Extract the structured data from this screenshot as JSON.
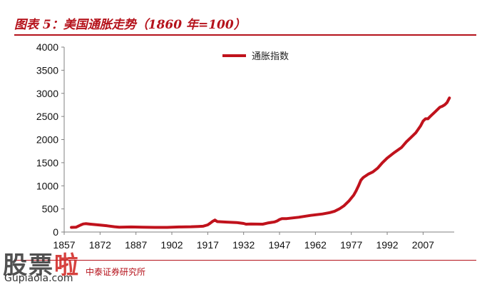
{
  "header": {
    "title": "图表 5：美国通胀走势（1860 年=100）"
  },
  "footer": {
    "source": "中泰证券研究所"
  },
  "watermark": {
    "text_left": "股票",
    "text_right": "啦",
    "url": "Gupiaola.com"
  },
  "colors": {
    "accent": "#b5121b",
    "series": "#c0121c",
    "axis": "#808080"
  },
  "chart_data": {
    "type": "line",
    "title": "",
    "xlabel": "",
    "ylabel": "",
    "xlim": [
      1857,
      2020
    ],
    "ylim": [
      0,
      4000
    ],
    "y_ticks": [
      "0",
      "500",
      "1000",
      "1500",
      "2000",
      "2500",
      "3000",
      "3500",
      "4000"
    ],
    "x_ticks": [
      "1857",
      "1872",
      "1887",
      "1902",
      "1917",
      "1932",
      "1947",
      "1962",
      "1977",
      "1992",
      "2007"
    ],
    "legend": "top-center",
    "grid": false,
    "series": [
      {
        "name": "通胀指数",
        "x": [
          1860,
          1862,
          1864,
          1865,
          1866,
          1868,
          1870,
          1872,
          1875,
          1878,
          1880,
          1885,
          1890,
          1895,
          1900,
          1905,
          1910,
          1913,
          1915,
          1917,
          1918,
          1919,
          1920,
          1921,
          1925,
          1929,
          1930,
          1932,
          1933,
          1935,
          1940,
          1942,
          1945,
          1946,
          1947,
          1948,
          1950,
          1955,
          1960,
          1965,
          1968,
          1970,
          1972,
          1974,
          1976,
          1978,
          1979,
          1980,
          1981,
          1982,
          1984,
          1986,
          1988,
          1990,
          1992,
          1995,
          1998,
          2000,
          2002,
          2004,
          2006,
          2007,
          2008,
          2009,
          2010,
          2012,
          2014,
          2015,
          2016,
          2017,
          2018
        ],
        "values": [
          100,
          105,
          155,
          175,
          180,
          170,
          160,
          150,
          135,
          115,
          105,
          110,
          105,
          100,
          100,
          110,
          115,
          120,
          125,
          155,
          190,
          230,
          260,
          225,
          215,
          205,
          200,
          185,
          170,
          175,
          170,
          195,
          220,
          240,
          270,
          290,
          290,
          320,
          360,
          390,
          420,
          450,
          500,
          570,
          670,
          800,
          890,
          1000,
          1120,
          1180,
          1250,
          1300,
          1380,
          1500,
          1600,
          1720,
          1830,
          1950,
          2050,
          2150,
          2300,
          2400,
          2450,
          2450,
          2500,
          2600,
          2700,
          2720,
          2750,
          2800,
          2900
        ]
      }
    ]
  }
}
